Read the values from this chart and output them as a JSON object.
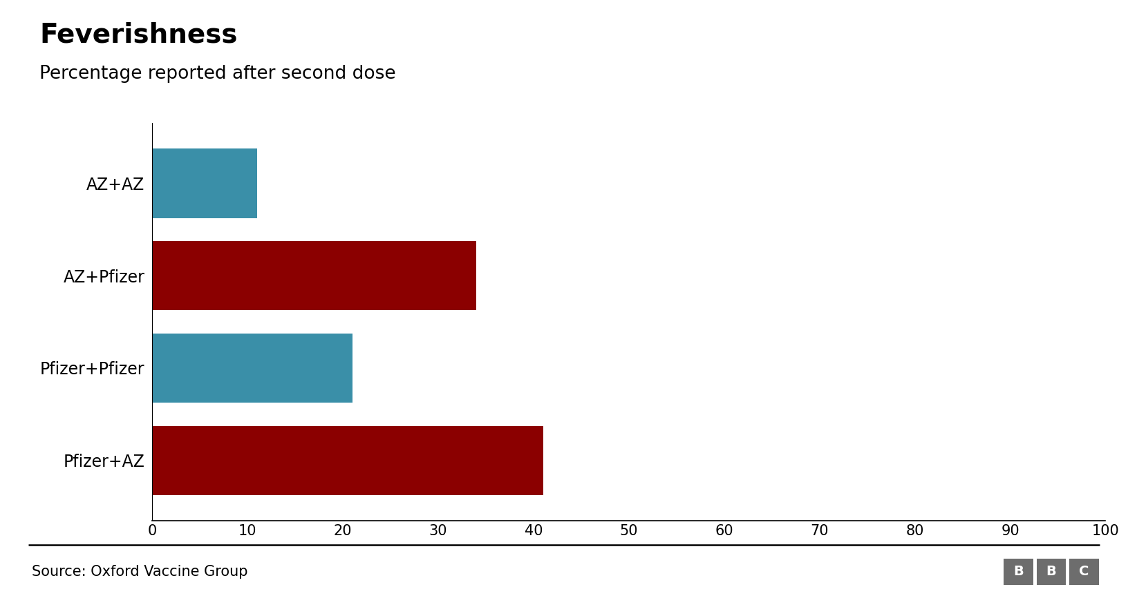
{
  "title": "Feverishness",
  "subtitle": "Percentage reported after second dose",
  "categories": [
    "AZ+AZ",
    "AZ+Pfizer",
    "Pfizer+Pfizer",
    "Pfizer+AZ"
  ],
  "values": [
    11,
    34,
    21,
    41
  ],
  "colors": [
    "#3a8fa8",
    "#8b0000",
    "#3a8fa8",
    "#8b0000"
  ],
  "xlim": [
    0,
    100
  ],
  "xticks": [
    0,
    10,
    20,
    30,
    40,
    50,
    60,
    70,
    80,
    90,
    100
  ],
  "source_text": "Source: Oxford Vaccine Group",
  "background_color": "#ffffff",
  "title_fontsize": 28,
  "subtitle_fontsize": 19,
  "tick_fontsize": 15,
  "label_fontsize": 17,
  "source_fontsize": 15,
  "bar_height": 0.75
}
